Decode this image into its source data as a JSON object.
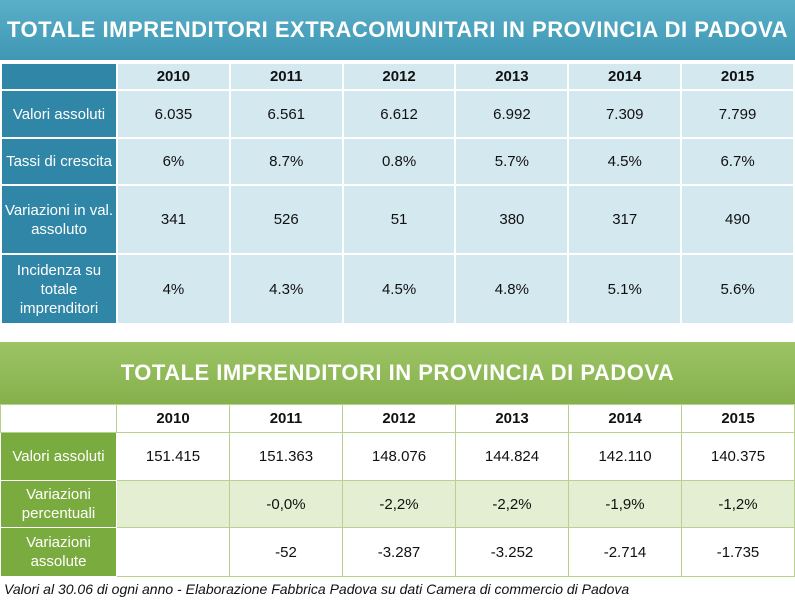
{
  "table1": {
    "title": "TOTALE IMPRENDITORI EXTRACOMUNITARI IN PROVINCIA DI PADOVA",
    "years": [
      "2010",
      "2011",
      "2012",
      "2013",
      "2014",
      "2015"
    ],
    "rows": [
      {
        "label": "Valori assoluti",
        "values": [
          "6.035",
          "6.561",
          "6.612",
          "6.992",
          "7.309",
          "7.799"
        ]
      },
      {
        "label": "Tassi di crescita",
        "values": [
          "6%",
          "8.7%",
          "0.8%",
          "5.7%",
          "4.5%",
          "6.7%"
        ]
      },
      {
        "label": "Variazioni in val. assoluto",
        "values": [
          "341",
          "526",
          "51",
          "380",
          "317",
          "490"
        ]
      },
      {
        "label": "Incidenza su totale imprenditori",
        "values": [
          "4%",
          "4.3%",
          "4.5%",
          "4.8%",
          "5.1%",
          "5.6%"
        ]
      }
    ]
  },
  "table2": {
    "title": "TOTALE IMPRENDITORI IN PROVINCIA DI PADOVA",
    "years": [
      "2010",
      "2011",
      "2012",
      "2013",
      "2014",
      "2015"
    ],
    "rows": [
      {
        "label": "Valori assoluti",
        "values": [
          "151.415",
          "151.363",
          "148.076",
          "144.824",
          "142.110",
          "140.375"
        ]
      },
      {
        "label": "Variazioni percentuali",
        "values": [
          "",
          "-0,0%",
          "-2,2%",
          "-2,2%",
          "-1,9%",
          "-1,2%"
        ]
      },
      {
        "label": "Variazioni assolute",
        "values": [
          "",
          "-52",
          "-3.287",
          "-3.252",
          "-2.714",
          "-1.735"
        ]
      }
    ]
  },
  "footnote": "Valori al 30.06 di ogni anno - Elaborazione Fabbrica Padova su dati Camera di commercio di Padova",
  "colors": {
    "blue_banner": "#3f97b4",
    "blue_row_header": "#2f86a6",
    "blue_cell": "#d4e8f0",
    "green_banner": "#86b04c",
    "green_row_header": "#7aab3f",
    "green_shade": "#e3eed3"
  }
}
